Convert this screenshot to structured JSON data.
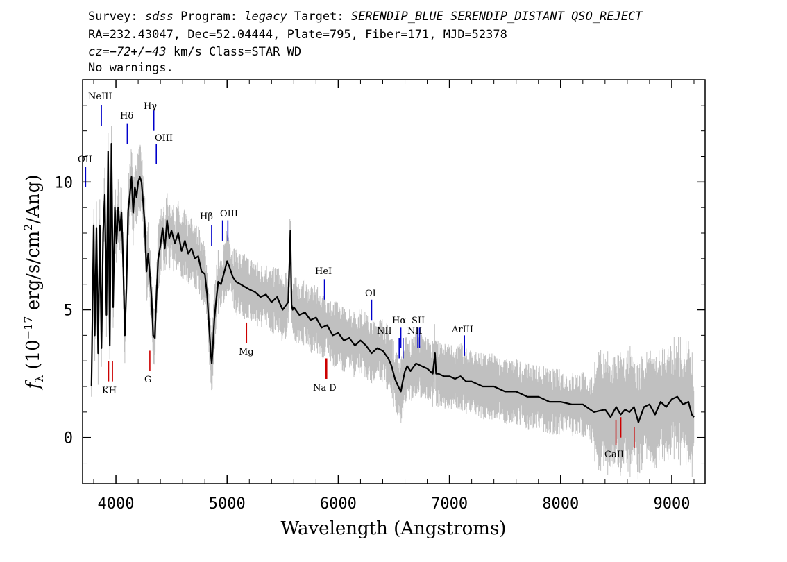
{
  "header": {
    "line1": {
      "survey_label": "Survey:",
      "survey": "sdss",
      "program_label": "Program:",
      "program": "legacy",
      "target_label": "Target:",
      "target": "SERENDIP_BLUE SERENDIP_DISTANT QSO_REJECT"
    },
    "line2": "RA=232.43047, Dec=52.04444, Plate=795, Fiber=171, MJD=52378",
    "line3": {
      "cz_label": "cz=",
      "cz_value": "−72+/−43",
      "cz_unit": "km/s Class=STAR WD"
    },
    "line4": "No warnings."
  },
  "chart_data": {
    "type": "line",
    "xlabel": "Wavelength (Angstroms)",
    "ylabel": {
      "f": "f",
      "sub": "λ",
      "open": " (10",
      "exp": "−17",
      "mid": " erg/s/cm",
      "exp2": "2",
      "close": "/Ang)"
    },
    "xlim": [
      3700,
      9300
    ],
    "ylim": [
      -1.8,
      14.0
    ],
    "x_ticks": [
      4000,
      5000,
      6000,
      7000,
      8000,
      9000
    ],
    "x_tick_labels": [
      "4000",
      "5000",
      "6000",
      "7000",
      "8000",
      "9000"
    ],
    "y_ticks": [
      0,
      5,
      10
    ],
    "y_tick_labels": [
      "0",
      "5",
      "10"
    ],
    "series": [
      {
        "role": "smoothed flux",
        "color": "#000000",
        "x": [
          3780,
          3800,
          3810,
          3825,
          3840,
          3855,
          3870,
          3885,
          3900,
          3915,
          3930,
          3945,
          3960,
          3975,
          3990,
          4005,
          4020,
          4035,
          4050,
          4065,
          4080,
          4095,
          4110,
          4125,
          4140,
          4155,
          4170,
          4185,
          4200,
          4215,
          4230,
          4245,
          4260,
          4275,
          4290,
          4305,
          4320,
          4335,
          4350,
          4365,
          4380,
          4400,
          4420,
          4440,
          4460,
          4480,
          4500,
          4530,
          4560,
          4590,
          4620,
          4650,
          4680,
          4710,
          4740,
          4770,
          4800,
          4820,
          4840,
          4855,
          4862,
          4870,
          4885,
          4900,
          4920,
          4945,
          4970,
          5000,
          5020,
          5050,
          5080,
          5120,
          5160,
          5200,
          5250,
          5300,
          5350,
          5400,
          5450,
          5500,
          5550,
          5570,
          5580,
          5590,
          5600,
          5650,
          5700,
          5750,
          5800,
          5850,
          5900,
          5950,
          6000,
          6050,
          6100,
          6150,
          6200,
          6250,
          6300,
          6350,
          6400,
          6450,
          6480,
          6510,
          6540,
          6563,
          6580,
          6600,
          6620,
          6650,
          6700,
          6750,
          6800,
          6850,
          6870,
          6880,
          6900,
          6950,
          7000,
          7050,
          7100,
          7150,
          7200,
          7300,
          7400,
          7500,
          7600,
          7700,
          7800,
          7900,
          8000,
          8100,
          8200,
          8300,
          8400,
          8450,
          8500,
          8540,
          8580,
          8620,
          8660,
          8700,
          8750,
          8800,
          8850,
          8900,
          8950,
          9000,
          9050,
          9100,
          9150,
          9180,
          9200
        ],
        "y": [
          2.0,
          8.3,
          4.0,
          8.2,
          3.3,
          8.3,
          3.5,
          8.0,
          9.5,
          4.8,
          11.2,
          3.6,
          11.5,
          5.1,
          9.0,
          7.6,
          9.0,
          8.1,
          8.8,
          6.8,
          4.0,
          6.0,
          8.9,
          9.5,
          10.2,
          8.8,
          9.8,
          9.4,
          10.0,
          10.2,
          10.0,
          9.2,
          8.3,
          6.5,
          7.2,
          6.4,
          5.5,
          4.0,
          3.9,
          5.6,
          7.0,
          7.5,
          8.2,
          7.4,
          8.5,
          7.8,
          8.1,
          7.6,
          8.0,
          7.3,
          7.7,
          7.2,
          7.4,
          7.0,
          7.1,
          6.5,
          6.4,
          5.6,
          4.2,
          3.2,
          2.9,
          3.4,
          4.6,
          5.3,
          6.1,
          6.0,
          6.4,
          6.9,
          6.7,
          6.3,
          6.1,
          6.0,
          5.9,
          5.8,
          5.7,
          5.5,
          5.6,
          5.3,
          5.5,
          5.0,
          5.3,
          8.1,
          5.2,
          5.0,
          5.1,
          4.8,
          4.9,
          4.6,
          4.7,
          4.3,
          4.4,
          4.0,
          4.1,
          3.8,
          3.9,
          3.6,
          3.8,
          3.6,
          3.3,
          3.5,
          3.4,
          3.1,
          2.8,
          2.3,
          2.0,
          1.8,
          2.2,
          2.6,
          2.8,
          2.6,
          2.9,
          2.8,
          2.7,
          2.5,
          3.3,
          2.5,
          2.5,
          2.4,
          2.4,
          2.3,
          2.4,
          2.2,
          2.2,
          2.0,
          2.0,
          1.8,
          1.8,
          1.6,
          1.6,
          1.4,
          1.4,
          1.3,
          1.3,
          1.0,
          1.1,
          0.8,
          1.2,
          0.9,
          1.1,
          1.0,
          1.2,
          0.6,
          1.2,
          1.3,
          0.9,
          1.4,
          1.2,
          1.5,
          1.6,
          1.3,
          1.4,
          0.9,
          0.8
        ]
      }
    ],
    "noise_color": "#c0c0c0",
    "line_markers": [
      {
        "label": "NeIII",
        "x": 3869,
        "y_top": 13.0,
        "y_bot": 12.2,
        "color": "#0000cc",
        "pos": "above"
      },
      {
        "label": "OII",
        "x": 3727,
        "y_top": 10.6,
        "y_bot": 9.8,
        "color": "#0000cc",
        "pos": "above"
      },
      {
        "label": "Hδ",
        "x": 4102,
        "y_top": 12.3,
        "y_bot": 11.5,
        "color": "#0000cc",
        "pos": "above"
      },
      {
        "label": "Hγ",
        "x": 4341,
        "y_top": 12.8,
        "y_bot": 12.0,
        "color": "#0000cc",
        "pos": "above"
      },
      {
        "label": "OIII",
        "x": 4363,
        "y_top": 11.5,
        "y_bot": 10.7,
        "color": "#0000cc",
        "pos": "above"
      },
      {
        "label": "Hβ",
        "x": 4861,
        "y_top": 8.3,
        "y_bot": 7.5,
        "color": "#0000cc",
        "pos": "above"
      },
      {
        "label": "OIII",
        "x": 4959,
        "y_top": 8.5,
        "y_bot": 7.7,
        "color": "#0000cc",
        "pos": "above"
      },
      {
        "label": "OIII",
        "x": 5007,
        "y_top": 8.5,
        "y_bot": 7.7,
        "color": "#0000cc",
        "pos": "above"
      },
      {
        "label": "HeI",
        "x": 5876,
        "y_top": 6.2,
        "y_bot": 5.4,
        "color": "#0000cc",
        "pos": "above"
      },
      {
        "label": "OI",
        "x": 6300,
        "y_top": 5.4,
        "y_bot": 4.6,
        "color": "#0000cc",
        "pos": "above"
      },
      {
        "label": "NII",
        "x": 6548,
        "y_top": 3.9,
        "y_bot": 3.1,
        "color": "#0000cc",
        "pos": "above"
      },
      {
        "label": "Hα",
        "x": 6563,
        "y_top": 4.3,
        "y_bot": 3.5,
        "color": "#0000cc",
        "pos": "above"
      },
      {
        "label": "NII",
        "x": 6583,
        "y_top": 3.9,
        "y_bot": 3.1,
        "color": "#0000cc",
        "pos": "above"
      },
      {
        "label": "SII",
        "x": 6716,
        "y_top": 4.3,
        "y_bot": 3.5,
        "color": "#0000cc",
        "pos": "above"
      },
      {
        "label": "SII",
        "x": 6731,
        "y_top": 4.3,
        "y_bot": 3.5,
        "color": "#0000cc",
        "pos": "above"
      },
      {
        "label": "ArIII",
        "x": 7135,
        "y_top": 4.0,
        "y_bot": 3.2,
        "color": "#0000cc",
        "pos": "above"
      },
      {
        "label": "K",
        "x": 3934,
        "y_top": 3.0,
        "y_bot": 2.2,
        "color": "#cc0000",
        "pos": "below"
      },
      {
        "label": "H",
        "x": 3969,
        "y_top": 3.0,
        "y_bot": 2.2,
        "color": "#cc0000",
        "pos": "below"
      },
      {
        "label": "G",
        "x": 4305,
        "y_top": 3.4,
        "y_bot": 2.6,
        "color": "#cc0000",
        "pos": "below"
      },
      {
        "label": "Mg",
        "x": 5175,
        "y_top": 4.5,
        "y_bot": 3.7,
        "color": "#cc0000",
        "pos": "below"
      },
      {
        "label": "Na",
        "x": 5890,
        "y_top": 3.1,
        "y_bot": 2.3,
        "color": "#cc0000",
        "pos": "below"
      },
      {
        "label": "D",
        "x": 5896,
        "y_top": 3.1,
        "y_bot": 2.3,
        "color": "#cc0000",
        "pos": "below"
      },
      {
        "label": "CaII",
        "x": 8498,
        "y_top": 0.7,
        "y_bot": -0.3,
        "color": "#cc0000",
        "pos": "below"
      },
      {
        "label": "CaII",
        "x": 8542,
        "y_top": 0.8,
        "y_bot": 0.0,
        "color": "#cc0000",
        "pos": "below"
      },
      {
        "label": "CaII",
        "x": 8662,
        "y_top": 0.4,
        "y_bot": -0.4,
        "color": "#cc0000",
        "pos": "below"
      }
    ],
    "line_label_texts": {
      "NeIII": "NeIII",
      "OII": "OII",
      "Hdelta": "Hδ",
      "Hgamma": "Hγ",
      "OIII_4363": "OIII",
      "Hbeta": "Hβ",
      "OIII_5007": "OIII",
      "HeI": "HeI",
      "OI": "OI",
      "NII_left": "NII",
      "Halpha": "Hα",
      "SII": "SII",
      "NII_right": "NII",
      "ArIII": "ArIII",
      "KH": "KH",
      "G": "G",
      "Mg": "Mg",
      "NaD": "Na D",
      "CaII": "CaII"
    }
  }
}
